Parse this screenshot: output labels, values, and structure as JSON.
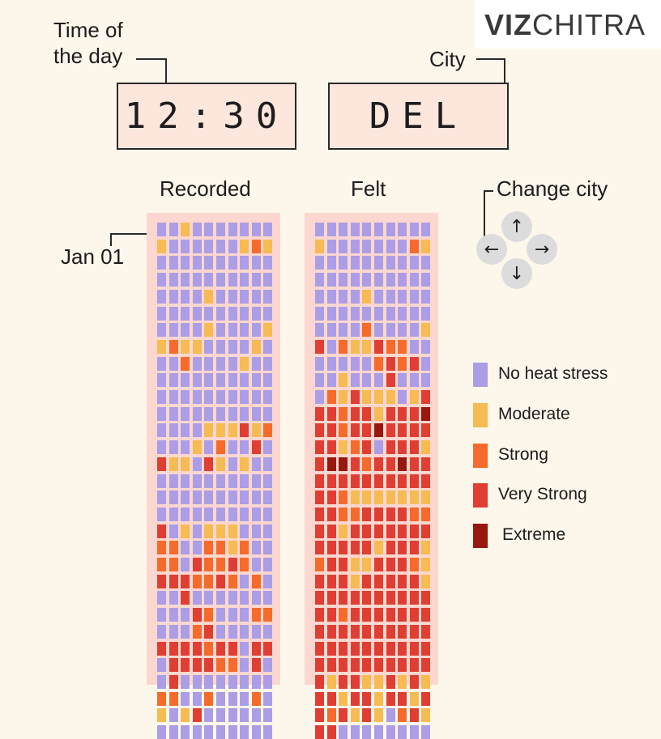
{
  "brand": {
    "logo_bold": "VIZ",
    "logo_thin": "CHITRA"
  },
  "controls": {
    "time_label_line1": "Time of",
    "time_label_line2": "the day",
    "time_value": "12:30",
    "city_label": "City",
    "city_value": "DEL",
    "change_city_label": "Change city",
    "arrows": {
      "up": "↑",
      "left": "←",
      "right": "→",
      "down": "↓"
    }
  },
  "chart": {
    "recorded_title": "Recorded",
    "felt_title": "Felt",
    "start_label": "Jan 01"
  },
  "legend": [
    {
      "label": "No heat stress",
      "color": "#ab9de6"
    },
    {
      "label": "Moderate",
      "color": "#f6bb52"
    },
    {
      "label": "Strong",
      "color": "#f66b2b"
    },
    {
      "label": "Very Strong",
      "color": "#e03e33"
    },
    {
      "label": "Extreme",
      "color": "#98170f"
    }
  ],
  "chart_data": {
    "type": "heatmap",
    "categories": [
      "No heat stress",
      "Moderate",
      "Strong",
      "Very Strong",
      "Extreme"
    ],
    "columns_per_row": 10,
    "recorded_rows": [
      "0010000000",
      "1000000121",
      "0000000000",
      "0000000000",
      "0000100000",
      "0000000000",
      "0000100001",
      "1211000010",
      "0020000100",
      "0000000000",
      "0000000000",
      "0000000000",
      "0000111312",
      "0001020030",
      "3110310100",
      "0000000000",
      "0000000000",
      "0000000000",
      "3010111000",
      "2200221200",
      "2203223200",
      "3332232020",
      "0030000000",
      "0003200022",
      "0002300000",
      "3333233033",
      "0333322030",
      "0300000000",
      "2200200020",
      "1013000000",
      "0000000000"
    ],
    "felt_rows": [
      "0000000000",
      "1000000021",
      "0000000000",
      "0000000000",
      "0000100000",
      "0000000000",
      "0000200001",
      "3021132200",
      "0000023230",
      "0010003000",
      "0213111013",
      "3323313334",
      "3323343333",
      "3312303331",
      "3443233433",
      "3333333333",
      "3321111111",
      "3322333322",
      "3313333333",
      "3333313331",
      "2331133321",
      "3331333331",
      "3333333333",
      "3323333333",
      "3333333333",
      "3333333333",
      "3333333333",
      "3133113131",
      "3313313313",
      "3231310231",
      "3300000000"
    ]
  }
}
